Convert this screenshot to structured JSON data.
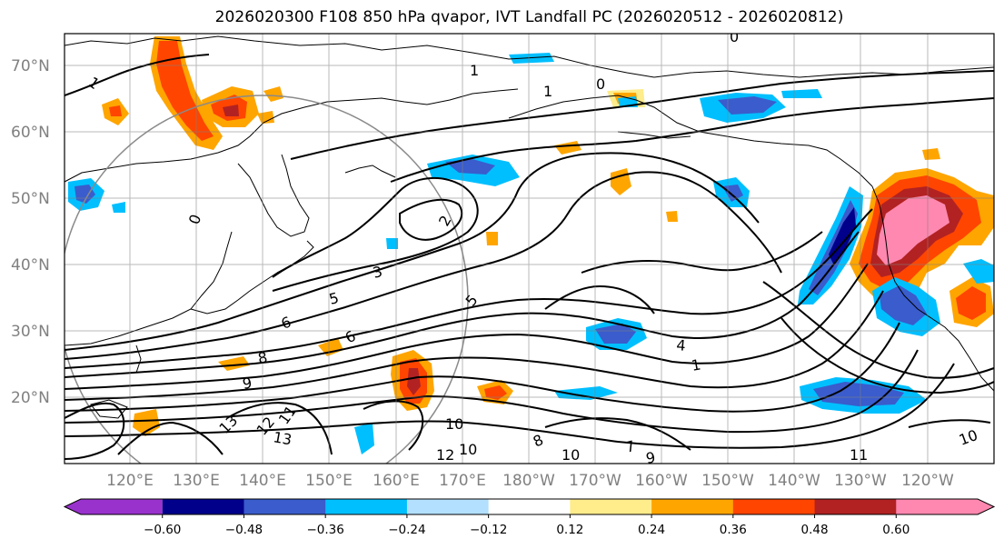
{
  "title": "2026020300 F108 850 hPa qvapor, IVT Landfall PC (2026020512 - 2026020812)",
  "lat_ticks": [
    "70°N",
    "60°N",
    "50°N",
    "40°N",
    "30°N",
    "20°N"
  ],
  "lon_ticks": [
    "120°E",
    "130°E",
    "140°E",
    "150°E",
    "160°E",
    "170°E",
    "180°W",
    "170°W",
    "160°W",
    "150°W",
    "140°W",
    "130°W",
    "120°W"
  ],
  "colorbar": {
    "colors": [
      "#9932cc",
      "#00008b",
      "#3a5ccc",
      "#00bfff",
      "#b3e0ff",
      "#ffffff",
      "#ffec8b",
      "#ffa500",
      "#ff4500",
      "#b22222",
      "#ff88b0"
    ],
    "tick_labels": [
      "−0.60",
      "−0.48",
      "−0.36",
      "−0.24",
      "−0.12",
      "0.12",
      "0.24",
      "0.36",
      "0.48",
      "0.60"
    ]
  },
  "contour_labels": [
    "0",
    "0",
    "0",
    "1",
    "1",
    "1",
    "1",
    "2",
    "3",
    "4",
    "5",
    "5",
    "6",
    "6",
    "7",
    "8",
    "8",
    "9",
    "9",
    "10",
    "10",
    "10",
    "10",
    "11",
    "11",
    "12",
    "12",
    "13",
    "13"
  ]
}
